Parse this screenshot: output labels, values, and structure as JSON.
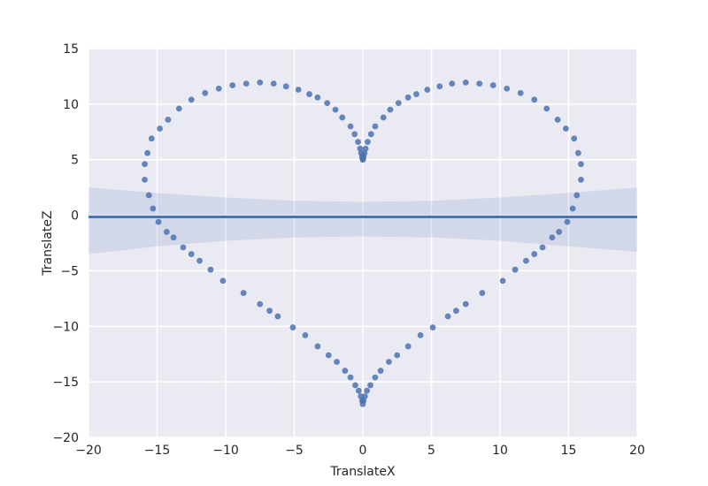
{
  "chart_data": {
    "type": "scatter",
    "title": "",
    "xlabel": "TranslateX",
    "ylabel": "TranslateZ",
    "xlim": [
      -20,
      20
    ],
    "ylim": [
      -20,
      15
    ],
    "xticks": [
      -20,
      -15,
      -10,
      -5,
      0,
      5,
      10,
      15,
      20
    ],
    "yticks": [
      -20,
      -15,
      -10,
      -5,
      0,
      5,
      10,
      15
    ],
    "xtick_labels": [
      "−20",
      "−15",
      "−10",
      "−5",
      "0",
      "5",
      "10",
      "15",
      "20"
    ],
    "ytick_labels": [
      "−20",
      "−15",
      "−10",
      "−5",
      "0",
      "5",
      "10",
      "15"
    ],
    "grid": true,
    "colors": {
      "background": "#eaeaf2",
      "grid": "#ffffff",
      "points": "#4c72b0",
      "regression_line": "#4c72b0",
      "confidence_band": "#4c72b0"
    },
    "series": [
      {
        "kind": "scatter",
        "points": [
          [
            0.0,
            5.0
          ],
          [
            -0.02,
            5.1
          ],
          [
            0.02,
            5.1
          ],
          [
            -0.05,
            5.3
          ],
          [
            0.05,
            5.3
          ],
          [
            -0.12,
            5.6
          ],
          [
            0.12,
            5.6
          ],
          [
            -0.2,
            6.0
          ],
          [
            0.2,
            6.0
          ],
          [
            -0.35,
            6.6
          ],
          [
            0.35,
            6.6
          ],
          [
            -0.6,
            7.3
          ],
          [
            0.6,
            7.3
          ],
          [
            -0.9,
            8.0
          ],
          [
            0.9,
            8.0
          ],
          [
            -1.5,
            8.8
          ],
          [
            1.5,
            8.8
          ],
          [
            -2.0,
            9.5
          ],
          [
            2.0,
            9.5
          ],
          [
            -2.6,
            10.1
          ],
          [
            2.6,
            10.1
          ],
          [
            -3.3,
            10.6
          ],
          [
            3.3,
            10.6
          ],
          [
            -3.9,
            10.9
          ],
          [
            3.9,
            10.9
          ],
          [
            -4.7,
            11.3
          ],
          [
            4.7,
            11.3
          ],
          [
            -5.6,
            11.6
          ],
          [
            5.6,
            11.6
          ],
          [
            -6.5,
            11.85
          ],
          [
            6.5,
            11.85
          ],
          [
            -7.5,
            11.95
          ],
          [
            7.5,
            11.95
          ],
          [
            -8.5,
            11.85
          ],
          [
            8.5,
            11.85
          ],
          [
            -9.5,
            11.7
          ],
          [
            9.5,
            11.7
          ],
          [
            -10.5,
            11.4
          ],
          [
            10.5,
            11.4
          ],
          [
            -11.5,
            11.0
          ],
          [
            11.5,
            11.0
          ],
          [
            -12.5,
            10.4
          ],
          [
            12.5,
            10.4
          ],
          [
            -13.4,
            9.6
          ],
          [
            13.4,
            9.6
          ],
          [
            -14.2,
            8.6
          ],
          [
            14.2,
            8.6
          ],
          [
            -14.8,
            7.8
          ],
          [
            14.8,
            7.8
          ],
          [
            -15.4,
            6.9
          ],
          [
            15.4,
            6.9
          ],
          [
            -15.7,
            5.6
          ],
          [
            15.7,
            5.6
          ],
          [
            -15.9,
            4.6
          ],
          [
            15.9,
            4.6
          ],
          [
            -15.9,
            3.2
          ],
          [
            15.9,
            3.2
          ],
          [
            -15.6,
            1.8
          ],
          [
            15.6,
            1.8
          ],
          [
            -15.3,
            0.6
          ],
          [
            15.3,
            0.6
          ],
          [
            -14.9,
            -0.6
          ],
          [
            14.9,
            -0.6
          ],
          [
            -14.3,
            -1.5
          ],
          [
            14.3,
            -1.5
          ],
          [
            -13.8,
            -2.0
          ],
          [
            13.8,
            -2.0
          ],
          [
            -13.1,
            -2.9
          ],
          [
            13.1,
            -2.9
          ],
          [
            -12.5,
            -3.5
          ],
          [
            12.5,
            -3.5
          ],
          [
            -11.9,
            -4.1
          ],
          [
            11.9,
            -4.1
          ],
          [
            -11.1,
            -4.9
          ],
          [
            11.1,
            -4.9
          ],
          [
            -10.2,
            -5.9
          ],
          [
            10.2,
            -5.9
          ],
          [
            -8.7,
            -7.0
          ],
          [
            8.7,
            -7.0
          ],
          [
            -7.5,
            -8.0
          ],
          [
            7.5,
            -8.0
          ],
          [
            -6.8,
            -8.6
          ],
          [
            6.8,
            -8.6
          ],
          [
            -6.2,
            -9.1
          ],
          [
            6.2,
            -9.1
          ],
          [
            -5.1,
            -10.1
          ],
          [
            5.1,
            -10.1
          ],
          [
            -4.2,
            -10.8
          ],
          [
            4.2,
            -10.8
          ],
          [
            -3.3,
            -11.8
          ],
          [
            3.3,
            -11.8
          ],
          [
            -2.5,
            -12.6
          ],
          [
            2.5,
            -12.6
          ],
          [
            -1.9,
            -13.2
          ],
          [
            1.9,
            -13.2
          ],
          [
            -1.3,
            -14.0
          ],
          [
            1.3,
            -14.0
          ],
          [
            -0.9,
            -14.6
          ],
          [
            0.9,
            -14.6
          ],
          [
            -0.55,
            -15.3
          ],
          [
            0.55,
            -15.3
          ],
          [
            -0.3,
            -15.8
          ],
          [
            0.3,
            -15.8
          ],
          [
            -0.15,
            -16.3
          ],
          [
            0.15,
            -16.3
          ],
          [
            -0.05,
            -16.7
          ],
          [
            0.05,
            -16.7
          ],
          [
            0.0,
            -17.0
          ]
        ]
      },
      {
        "kind": "regression_line",
        "points": [
          [
            -20,
            -0.15
          ],
          [
            20,
            -0.15
          ]
        ]
      },
      {
        "kind": "confidence_band",
        "upper": [
          [
            -20,
            2.5
          ],
          [
            -15,
            2.0
          ],
          [
            -10,
            1.6
          ],
          [
            -5,
            1.3
          ],
          [
            0,
            1.2
          ],
          [
            5,
            1.3
          ],
          [
            10,
            1.6
          ],
          [
            15,
            2.0
          ],
          [
            20,
            2.5
          ]
        ],
        "lower": [
          [
            -20,
            -3.5
          ],
          [
            -15,
            -2.8
          ],
          [
            -10,
            -2.3
          ],
          [
            -5,
            -2.0
          ],
          [
            0,
            -1.9
          ],
          [
            5,
            -2.0
          ],
          [
            10,
            -2.3
          ],
          [
            15,
            -2.8
          ],
          [
            20,
            -3.3
          ]
        ]
      }
    ]
  }
}
